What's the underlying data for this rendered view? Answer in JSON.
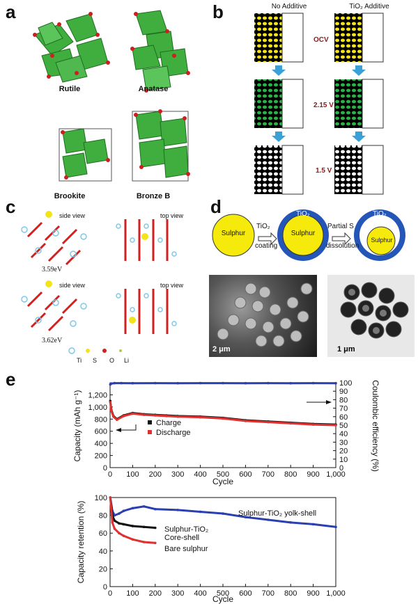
{
  "panels": {
    "a": "a",
    "b": "b",
    "c": "c",
    "d": "d",
    "e": "e"
  },
  "panel_a": {
    "structures": [
      "Rutile",
      "Anatase",
      "Brookite",
      "Bronze B"
    ]
  },
  "panel_b": {
    "columns": [
      "No Additive",
      "TiO₂ Additive"
    ],
    "states": [
      "OCV",
      "2.15 V",
      "1.5 V"
    ]
  },
  "panel_c": {
    "views": [
      "side view",
      "top view",
      "side view",
      "top view"
    ],
    "energies": [
      "3.59eV",
      "3.62eV"
    ],
    "legend": [
      "Ti",
      "S",
      "O",
      "Li"
    ]
  },
  "panel_d": {
    "sulphur": "Sulphur",
    "tio2": "TiO₂",
    "step1": "TiO₂",
    "step1b": "coating",
    "step2": "Partial S",
    "step2b": "dissolution",
    "scale_sem": "2 μm",
    "scale_tem": "1 μm"
  },
  "chart_data": [
    {
      "type": "line",
      "xlabel": "Cycle",
      "ylabel": "Capacity (mAh g⁻¹)",
      "y2label": "Coulombic efficiency (%)",
      "xlim": [
        0,
        1000
      ],
      "ylim": [
        0,
        1400
      ],
      "y2lim": [
        0,
        100
      ],
      "xticks": [
        "0",
        "100",
        "200",
        "300",
        "400",
        "500",
        "600",
        "700",
        "800",
        "900",
        "1,000"
      ],
      "yticks": [
        "0",
        "200",
        "400",
        "600",
        "800",
        "1,000",
        "1,200"
      ],
      "y2ticks": [
        "0",
        "10",
        "20",
        "30",
        "40",
        "50",
        "60",
        "70",
        "80",
        "90",
        "100"
      ],
      "series": [
        {
          "name": "Charge",
          "color": "#111111",
          "x": [
            1,
            5,
            15,
            30,
            60,
            100,
            150,
            200,
            250,
            300,
            400,
            500,
            600,
            700,
            800,
            900,
            1000
          ],
          "y": [
            1100,
            960,
            850,
            800,
            860,
            900,
            880,
            870,
            860,
            850,
            840,
            820,
            780,
            760,
            740,
            720,
            710
          ]
        },
        {
          "name": "Discharge",
          "color": "#e03030",
          "x": [
            1,
            5,
            15,
            30,
            60,
            100,
            150,
            200,
            250,
            300,
            400,
            500,
            600,
            700,
            800,
            900,
            1000
          ],
          "y": [
            1080,
            940,
            840,
            790,
            850,
            890,
            870,
            860,
            850,
            840,
            830,
            810,
            770,
            750,
            730,
            710,
            700
          ]
        },
        {
          "name": "",
          "color": "#2a3fb0",
          "axis": "right",
          "x": [
            1,
            5,
            20,
            50,
            100,
            200,
            300,
            400,
            500,
            600,
            700,
            800,
            900,
            1000
          ],
          "y": [
            98,
            99,
            99.5,
            99.5,
            99.4,
            99.5,
            99.4,
            99.5,
            99.5,
            99.4,
            99.5,
            99.4,
            99.5,
            99.4
          ]
        }
      ]
    },
    {
      "type": "line",
      "xlabel": "Cycle",
      "ylabel": "Capacity retention (%)",
      "xlim": [
        0,
        1000
      ],
      "ylim": [
        0,
        100
      ],
      "xticks": [
        "0",
        "100",
        "200",
        "300",
        "400",
        "500",
        "600",
        "700",
        "800",
        "900",
        "1,000"
      ],
      "yticks": [
        "0",
        "20",
        "40",
        "60",
        "80",
        "100"
      ],
      "series": [
        {
          "name": "Sulphur-TiO₂ yolk-shell",
          "color": "#2a3fb0",
          "x": [
            1,
            10,
            20,
            40,
            60,
            100,
            150,
            200,
            300,
            400,
            500,
            600,
            700,
            800,
            900,
            1000
          ],
          "y": [
            100,
            85,
            80,
            82,
            85,
            88,
            90,
            87,
            86,
            84,
            82,
            78,
            75,
            72,
            70,
            67
          ]
        },
        {
          "name": "Sulphur-TiO₂ Core-shell",
          "color": "#111111",
          "x": [
            1,
            10,
            20,
            40,
            60,
            100,
            150,
            200
          ],
          "y": [
            100,
            80,
            74,
            71,
            70,
            68,
            67,
            66
          ]
        },
        {
          "name": "Bare sulphur",
          "color": "#e03030",
          "x": [
            1,
            10,
            20,
            40,
            60,
            100,
            150,
            200
          ],
          "y": [
            100,
            72,
            65,
            60,
            57,
            53,
            50,
            49
          ]
        }
      ]
    }
  ],
  "panel_e_labels": {
    "charge": "Charge",
    "discharge": "Discharge",
    "yolk": "Sulphur-TiO₂ yolk-shell",
    "core1": "Sulphur-TiO₂",
    "core2": "Core-shell",
    "bare": "Bare sulphur"
  }
}
